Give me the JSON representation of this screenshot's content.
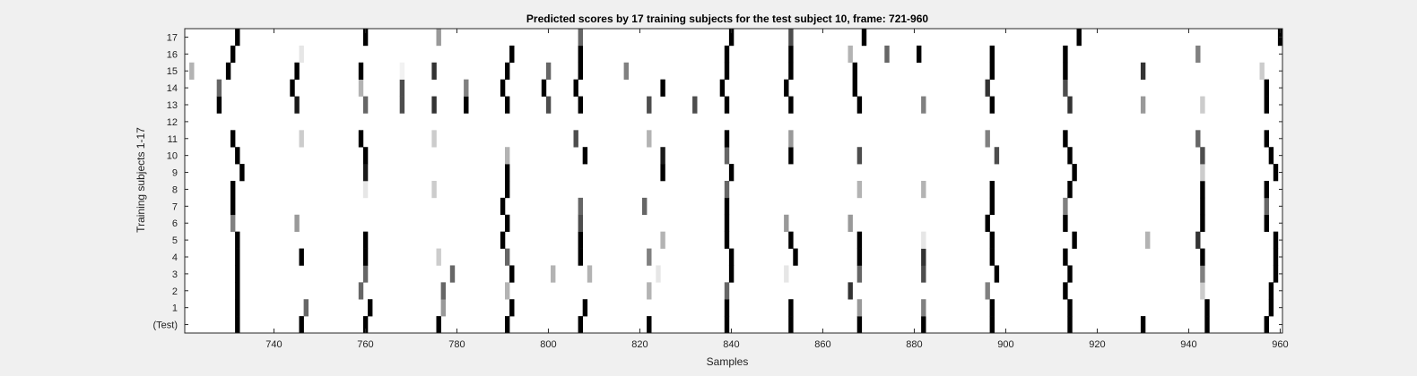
{
  "chart_data": {
    "type": "heatmap",
    "title": "Predicted scores by 17 training subjects for the test subject 10, frame: 721-960",
    "xlabel": "Samples",
    "ylabel": "Training subjects 1-17",
    "xlim": [
      721,
      960
    ],
    "x_ticks": [
      740,
      760,
      780,
      800,
      820,
      840,
      860,
      880,
      900,
      920,
      940,
      960
    ],
    "y_tick_labels": [
      "(Test)",
      "1",
      "2",
      "3",
      "4",
      "5",
      "6",
      "7",
      "8",
      "9",
      "10",
      "11",
      "12",
      "13",
      "14",
      "15",
      "16",
      "17"
    ],
    "colormap": "grayscale: 0 = white, 1 = black",
    "rows": [
      {
        "label": "(Test)",
        "cells": [
          [
            732,
            1
          ],
          [
            746,
            1
          ],
          [
            760,
            1
          ],
          [
            776,
            1
          ],
          [
            791,
            1
          ],
          [
            807,
            1
          ],
          [
            822,
            1
          ],
          [
            839,
            1
          ],
          [
            853,
            1
          ],
          [
            868,
            1
          ],
          [
            882,
            1
          ],
          [
            897,
            1
          ],
          [
            914,
            1
          ],
          [
            930,
            1
          ],
          [
            944,
            1
          ],
          [
            957,
            1
          ]
        ]
      },
      {
        "label": "1",
        "cells": [
          [
            732,
            1
          ],
          [
            747,
            0.6
          ],
          [
            761,
            1
          ],
          [
            777,
            0.4
          ],
          [
            792,
            1
          ],
          [
            808,
            1
          ],
          [
            839,
            1
          ],
          [
            853,
            1
          ],
          [
            868,
            0.4
          ],
          [
            882,
            0.5
          ],
          [
            897,
            1
          ],
          [
            914,
            1
          ],
          [
            944,
            1
          ],
          [
            958,
            1
          ]
        ]
      },
      {
        "label": "2",
        "cells": [
          [
            732,
            1
          ],
          [
            759,
            0.6
          ],
          [
            777,
            0.6
          ],
          [
            791,
            0.3
          ],
          [
            822,
            0.3
          ],
          [
            839,
            0.6
          ],
          [
            866,
            0.8
          ],
          [
            896,
            0.5
          ],
          [
            913,
            1
          ],
          [
            943,
            0.2
          ],
          [
            958,
            1
          ]
        ]
      },
      {
        "label": "3",
        "cells": [
          [
            732,
            1
          ],
          [
            760,
            0.6
          ],
          [
            779,
            0.6
          ],
          [
            792,
            1
          ],
          [
            801,
            0.3
          ],
          [
            809,
            0.3
          ],
          [
            824,
            0.1
          ],
          [
            840,
            1
          ],
          [
            852,
            0.1
          ],
          [
            868,
            0.6
          ],
          [
            882,
            0.7
          ],
          [
            898,
            1
          ],
          [
            914,
            1
          ],
          [
            943,
            0.5
          ],
          [
            959,
            1
          ]
        ]
      },
      {
        "label": "4",
        "cells": [
          [
            732,
            1
          ],
          [
            746,
            1
          ],
          [
            760,
            1
          ],
          [
            776,
            0.2
          ],
          [
            791,
            0.6
          ],
          [
            807,
            1
          ],
          [
            822,
            0.5
          ],
          [
            840,
            1
          ],
          [
            854,
            1
          ],
          [
            868,
            1
          ],
          [
            882,
            0.8
          ],
          [
            897,
            1
          ],
          [
            913,
            1
          ],
          [
            943,
            1
          ],
          [
            959,
            1
          ]
        ]
      },
      {
        "label": "5",
        "cells": [
          [
            732,
            1
          ],
          [
            760,
            1
          ],
          [
            790,
            1
          ],
          [
            807,
            1
          ],
          [
            825,
            0.3
          ],
          [
            839,
            1
          ],
          [
            853,
            1
          ],
          [
            868,
            1
          ],
          [
            882,
            0.1
          ],
          [
            897,
            1
          ],
          [
            915,
            1
          ],
          [
            931,
            0.3
          ],
          [
            942,
            0.8
          ],
          [
            959,
            1
          ]
        ]
      },
      {
        "label": "6",
        "cells": [
          [
            731,
            0.5
          ],
          [
            745,
            0.4
          ],
          [
            791,
            1
          ],
          [
            807,
            0.7
          ],
          [
            839,
            1
          ],
          [
            852,
            0.4
          ],
          [
            866,
            0.4
          ],
          [
            896,
            1
          ],
          [
            913,
            1
          ],
          [
            943,
            1
          ],
          [
            957,
            1
          ]
        ]
      },
      {
        "label": "7",
        "cells": [
          [
            731,
            1
          ],
          [
            790,
            1
          ],
          [
            807,
            0.6
          ],
          [
            821,
            0.6
          ],
          [
            839,
            1
          ],
          [
            897,
            1
          ],
          [
            913,
            0.5
          ],
          [
            943,
            1
          ],
          [
            957,
            0.6
          ]
        ]
      },
      {
        "label": "8",
        "cells": [
          [
            731,
            1
          ],
          [
            760,
            0.1
          ],
          [
            775,
            0.2
          ],
          [
            791,
            1
          ],
          [
            839,
            0.6
          ],
          [
            868,
            0.3
          ],
          [
            882,
            0.3
          ],
          [
            897,
            1
          ],
          [
            914,
            1
          ],
          [
            943,
            1
          ],
          [
            957,
            1
          ]
        ]
      },
      {
        "label": "9",
        "cells": [
          [
            733,
            1
          ],
          [
            760,
            0.9
          ],
          [
            791,
            1
          ],
          [
            825,
            1
          ],
          [
            840,
            1
          ],
          [
            915,
            1
          ],
          [
            943,
            0.2
          ],
          [
            959,
            1
          ]
        ]
      },
      {
        "label": "10",
        "cells": [
          [
            732,
            1
          ],
          [
            760,
            1
          ],
          [
            791,
            0.3
          ],
          [
            808,
            1
          ],
          [
            825,
            0.9
          ],
          [
            839,
            0.6
          ],
          [
            853,
            1
          ],
          [
            868,
            0.7
          ],
          [
            898,
            0.7
          ],
          [
            914,
            1
          ],
          [
            943,
            0.7
          ],
          [
            958,
            1
          ]
        ]
      },
      {
        "label": "11",
        "cells": [
          [
            731,
            1
          ],
          [
            746,
            0.2
          ],
          [
            759,
            1
          ],
          [
            775,
            0.2
          ],
          [
            806,
            0.7
          ],
          [
            822,
            0.3
          ],
          [
            839,
            1
          ],
          [
            853,
            0.4
          ],
          [
            896,
            0.5
          ],
          [
            913,
            1
          ],
          [
            942,
            0.6
          ],
          [
            957,
            1
          ]
        ]
      },
      {
        "label": "12",
        "cells": []
      },
      {
        "label": "13",
        "cells": [
          [
            728,
            1
          ],
          [
            745,
            0.9
          ],
          [
            760,
            0.6
          ],
          [
            768,
            0.7
          ],
          [
            775,
            0.8
          ],
          [
            782,
            1
          ],
          [
            791,
            1
          ],
          [
            800,
            0.7
          ],
          [
            807,
            1
          ],
          [
            822,
            0.7
          ],
          [
            832,
            0.7
          ],
          [
            839,
            1
          ],
          [
            853,
            1
          ],
          [
            868,
            1
          ],
          [
            882,
            0.5
          ],
          [
            897,
            1
          ],
          [
            914,
            0.8
          ],
          [
            930,
            0.4
          ],
          [
            943,
            0.2
          ],
          [
            957,
            1
          ]
        ]
      },
      {
        "label": "14",
        "cells": [
          [
            728,
            0.6
          ],
          [
            744,
            1
          ],
          [
            759,
            0.3
          ],
          [
            768,
            0.7
          ],
          [
            782,
            0.5
          ],
          [
            790,
            1
          ],
          [
            799,
            1
          ],
          [
            806,
            1
          ],
          [
            825,
            1
          ],
          [
            838,
            1
          ],
          [
            852,
            1
          ],
          [
            867,
            1
          ],
          [
            896,
            0.8
          ],
          [
            913,
            0.7
          ],
          [
            957,
            1
          ]
        ]
      },
      {
        "label": "15",
        "cells": [
          [
            722,
            0.3
          ],
          [
            730,
            1
          ],
          [
            745,
            1
          ],
          [
            759,
            1
          ],
          [
            768,
            0.05
          ],
          [
            775,
            0.8
          ],
          [
            791,
            1
          ],
          [
            800,
            0.6
          ],
          [
            807,
            1
          ],
          [
            817,
            0.5
          ],
          [
            839,
            1
          ],
          [
            853,
            1
          ],
          [
            867,
            1
          ],
          [
            897,
            1
          ],
          [
            913,
            1
          ],
          [
            930,
            0.8
          ],
          [
            956,
            0.2
          ]
        ]
      },
      {
        "label": "16",
        "cells": [
          [
            731,
            1
          ],
          [
            746,
            0.1
          ],
          [
            792,
            1
          ],
          [
            807,
            1
          ],
          [
            839,
            1
          ],
          [
            853,
            1
          ],
          [
            866,
            0.3
          ],
          [
            874,
            0.6
          ],
          [
            881,
            1
          ],
          [
            897,
            1
          ],
          [
            913,
            1
          ],
          [
            942,
            0.5
          ]
        ]
      },
      {
        "label": "17",
        "cells": [
          [
            732,
            1
          ],
          [
            760,
            1
          ],
          [
            776,
            0.4
          ],
          [
            807,
            0.6
          ],
          [
            840,
            1
          ],
          [
            853,
            0.7
          ],
          [
            869,
            1
          ],
          [
            916,
            1
          ],
          [
            960,
            1
          ]
        ]
      }
    ]
  }
}
